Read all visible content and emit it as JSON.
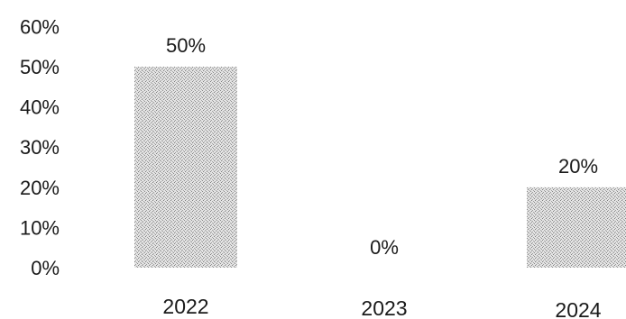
{
  "chart_data": {
    "type": "bar",
    "categories": [
      "2022",
      "2023",
      "2024"
    ],
    "values": [
      50,
      0,
      20
    ],
    "data_labels": [
      "50%",
      "0%",
      "20%"
    ],
    "y_ticks": [
      0,
      10,
      20,
      30,
      40,
      50,
      60
    ],
    "y_tick_labels": [
      "0%",
      "10%",
      "20%",
      "30%",
      "40%",
      "50%",
      "60%"
    ],
    "ylim": [
      0,
      60
    ],
    "y_unit": "%",
    "grid": false,
    "bar_color": "#c8c8c8",
    "bar_pattern": "stippled"
  }
}
